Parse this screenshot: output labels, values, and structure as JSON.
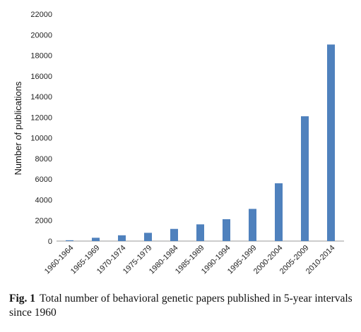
{
  "chart_data": {
    "type": "bar",
    "categories": [
      "1960-1964",
      "1965-1969",
      "1970-1974",
      "1975-1979",
      "1980-1984",
      "1985-1989",
      "1990-1994",
      "1995-1999",
      "2000-2004",
      "2005-2009",
      "2010-2014"
    ],
    "series": [
      {
        "values": [
          80,
          320,
          560,
          800,
          1180,
          1620,
          2120,
          3120,
          5600,
          12100,
          19050
        ]
      }
    ],
    "ylabel": "Number of publications",
    "xlabel": "",
    "ylim": [
      0,
      22000
    ],
    "yticks": [
      0,
      2000,
      4000,
      6000,
      8000,
      10000,
      12000,
      14000,
      16000,
      18000,
      20000,
      22000
    ],
    "grid": false,
    "bar_color": "#4f81bd"
  },
  "caption": {
    "label": "Fig. 1",
    "text": "Total number of behavioral genetic papers published in 5-year intervals since 1960"
  }
}
